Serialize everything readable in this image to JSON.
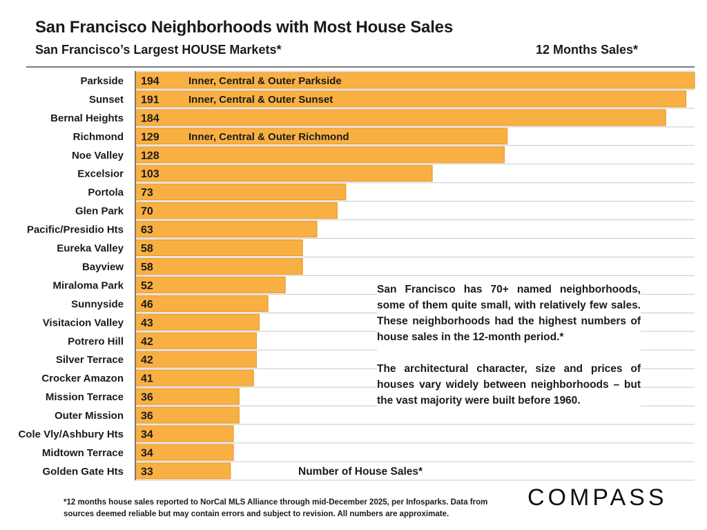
{
  "header": {
    "title": "San Francisco Neighborhoods with Most House Sales",
    "subtitle": "San Francisco’s Largest HOUSE Markets*",
    "period": "12 Months Sales*"
  },
  "chart_data": {
    "type": "bar",
    "orientation": "horizontal",
    "categories": [
      "Parkside",
      "Sunset",
      "Bernal Heights",
      "Richmond",
      "Noe Valley",
      "Excelsior",
      "Portola",
      "Glen Park",
      "Pacific/Presidio Hts",
      "Eureka Valley",
      "Bayview",
      "Miraloma Park",
      "Sunnyside",
      "Visitacion Valley",
      "Potrero Hill",
      "Silver Terrace",
      "Crocker Amazon",
      "Mission Terrace",
      "Outer Mission",
      "Cole Vly/Ashbury Hts",
      "Midtown Terrace",
      "Golden Gate Hts"
    ],
    "values": [
      194,
      191,
      184,
      129,
      128,
      103,
      73,
      70,
      63,
      58,
      58,
      52,
      46,
      43,
      42,
      42,
      41,
      36,
      36,
      34,
      34,
      33
    ],
    "bar_notes": [
      "Inner, Central & Outer Parkside",
      "Inner, Central & Outer Sunset",
      "",
      "Inner, Central & Outer Richmond",
      "",
      "",
      "",
      "",
      "",
      "",
      "",
      "",
      "",
      "",
      "",
      "",
      "",
      "",
      "",
      "",
      "",
      ""
    ],
    "xlabel": "Number of House Sales*",
    "xlim": [
      0,
      194
    ],
    "bar_color": "#F9B043",
    "bar_edge_color": "#E39322",
    "grid": true
  },
  "note": {
    "paragraph1": "San Francisco has 70+ named neighborhoods, some of them quite small, with relatively few sales. These neighborhoods had the highest numbers of house sales in the 12-month period.*",
    "paragraph2": "The architectural character, size and prices of houses vary widely between neighborhoods – but the vast majority were built before 1960."
  },
  "footnote": "*12 months house sales reported to NorCal MLS Alliance through mid-December 2025, per Infosparks. Data from sources deemed reliable but may contain errors and subject to revision. All numbers are approximate.",
  "logo": "COMPASS"
}
